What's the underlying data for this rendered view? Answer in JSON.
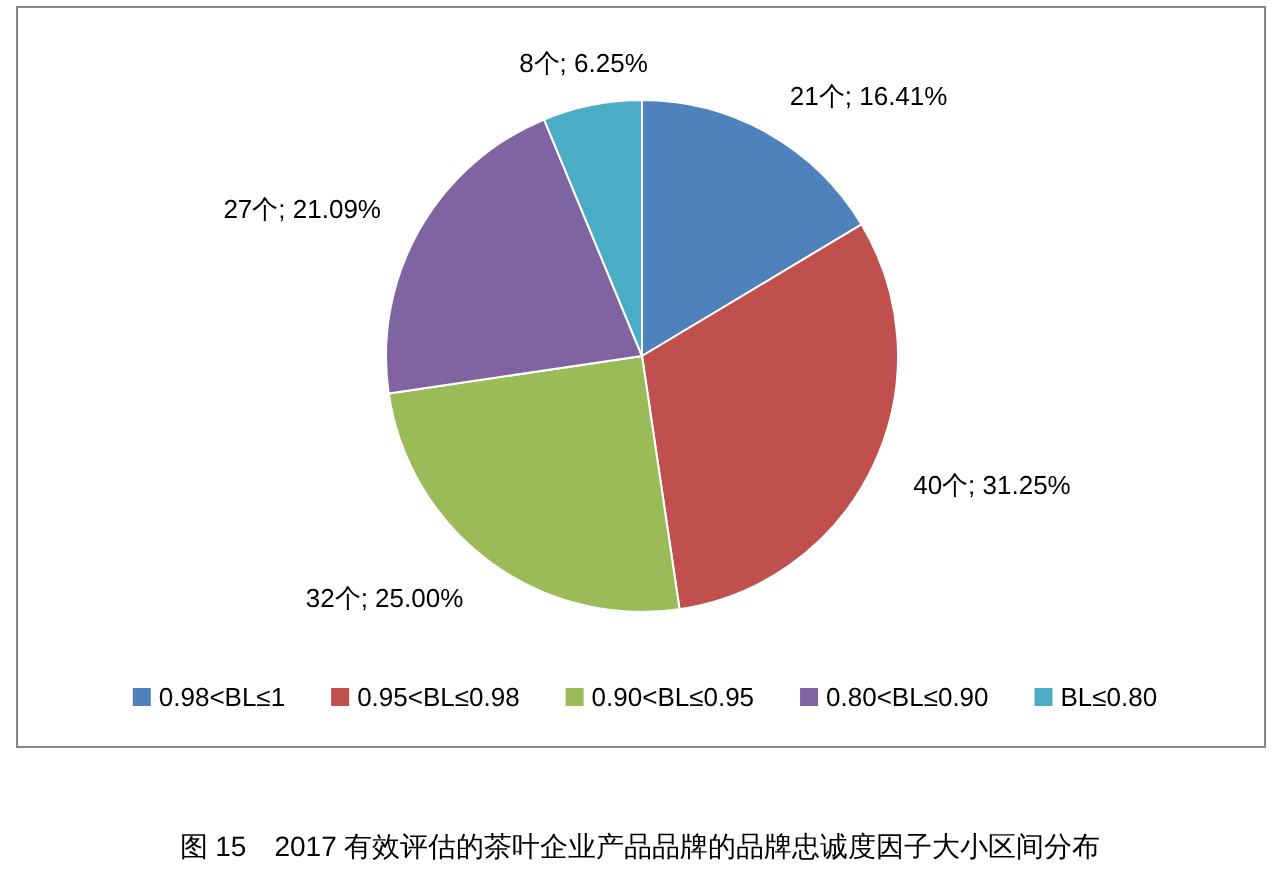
{
  "chart_data": {
    "type": "pie",
    "categories": [
      "0.98<BL≤1",
      "0.95<BL≤0.98",
      "0.90<BL≤0.95",
      "0.80<BL≤0.90",
      "BL≤0.80"
    ],
    "values": [
      21,
      40,
      32,
      27,
      8
    ],
    "colors": [
      "#4f81bd",
      "#c0504d",
      "#9bbb59",
      "#8064a2",
      "#4bacc6"
    ],
    "value_labels": [
      "21个; 16.41%",
      "40个; 31.25%",
      "32个; 25.00%",
      "27个; 21.09%",
      "8个; 6.25%"
    ],
    "legend": "bottom",
    "annotations": [
      "图 15　2017 有效评估的茶叶企业产品品牌的品牌忠诚度因子大小区间分布"
    ]
  }
}
